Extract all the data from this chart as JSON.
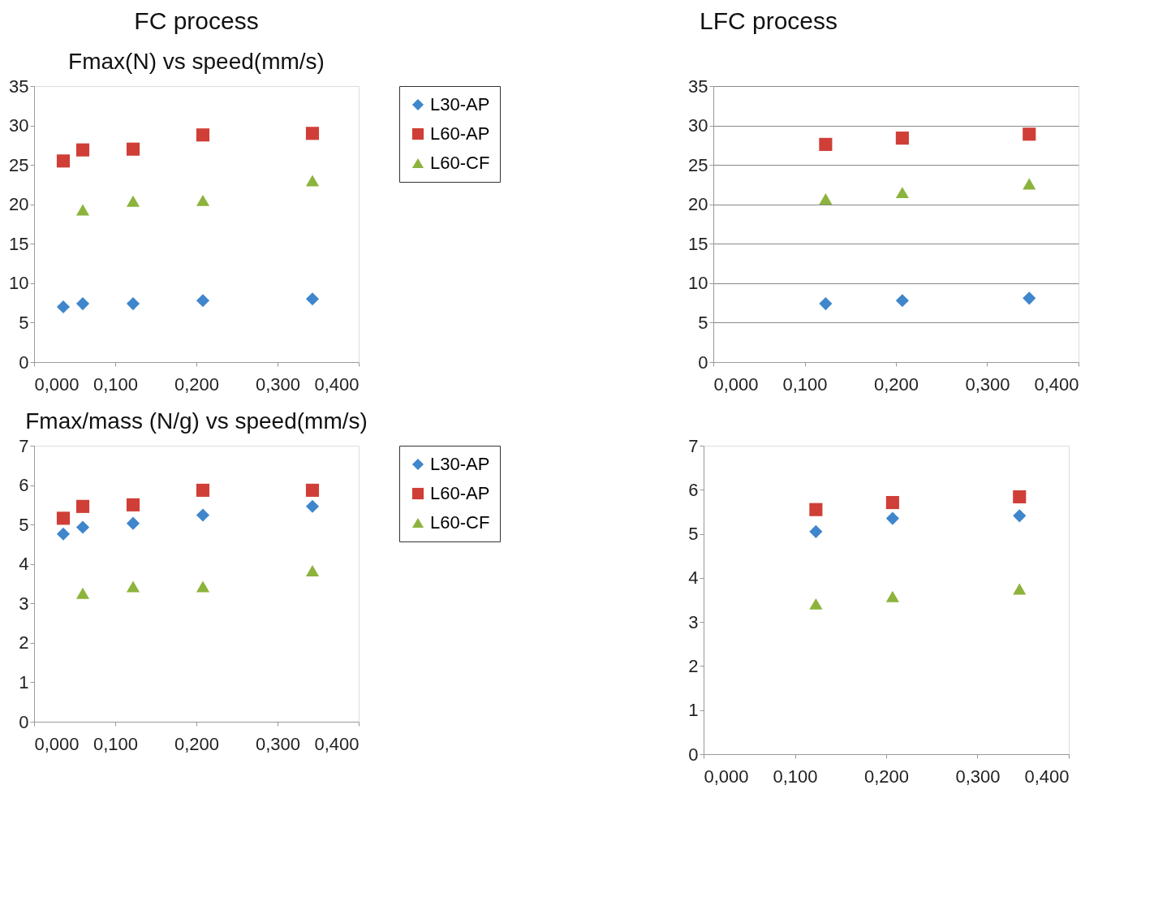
{
  "chart_data": [
    {
      "type": "scatter",
      "title": "Fmax(N) vs speed(mm/s)",
      "annotations": [
        "FC process"
      ],
      "xlim": [
        0,
        0.4
      ],
      "xticks": [
        {
          "value": 0,
          "label": "0,000"
        },
        {
          "value": 0.1,
          "label": "0,100"
        },
        {
          "value": 0.2,
          "label": "0,200"
        },
        {
          "value": 0.3,
          "label": "0,300"
        },
        {
          "value": 0.4,
          "label": "0,400"
        }
      ],
      "ylim": [
        0,
        35
      ],
      "yticks": [
        0,
        5,
        10,
        15,
        20,
        25,
        30,
        35
      ],
      "grid": false,
      "legend": "right",
      "series": [
        {
          "name": "L30-AP",
          "color": "#3f86cc",
          "marker": "diamond",
          "x": [
            0.036,
            0.06,
            0.122,
            0.208,
            0.343
          ],
          "values": [
            7.0,
            7.4,
            7.4,
            7.8,
            8.0
          ]
        },
        {
          "name": "L60-AP",
          "color": "#cf3f37",
          "marker": "square",
          "x": [
            0.036,
            0.06,
            0.122,
            0.208,
            0.343
          ],
          "values": [
            25.5,
            26.9,
            27.0,
            28.8,
            29.0
          ]
        },
        {
          "name": "L60-CF",
          "color": "#8cb33c",
          "marker": "triangle",
          "x": [
            0.06,
            0.122,
            0.208,
            0.343
          ],
          "values": [
            19.3,
            20.4,
            20.5,
            23.0
          ]
        }
      ]
    },
    {
      "type": "scatter",
      "annotations": [
        "LFC process"
      ],
      "xlim": [
        0,
        0.4
      ],
      "xticks": [
        {
          "value": 0,
          "label": "0,000"
        },
        {
          "value": 0.1,
          "label": "0,100"
        },
        {
          "value": 0.2,
          "label": "0,200"
        },
        {
          "value": 0.3,
          "label": "0,300"
        },
        {
          "value": 0.4,
          "label": "0,400"
        }
      ],
      "ylim": [
        0,
        35
      ],
      "yticks": [
        0,
        5,
        10,
        15,
        20,
        25,
        30,
        35
      ],
      "grid": "y",
      "legend": false,
      "series": [
        {
          "color": "#3f86cc",
          "marker": "diamond",
          "x": [
            0.123,
            0.207,
            0.346
          ],
          "values": [
            7.4,
            7.8,
            8.1
          ]
        },
        {
          "color": "#cf3f37",
          "marker": "square",
          "x": [
            0.123,
            0.207,
            0.346
          ],
          "values": [
            27.6,
            28.4,
            28.9
          ]
        },
        {
          "color": "#8cb33c",
          "marker": "triangle",
          "x": [
            0.123,
            0.207,
            0.346
          ],
          "values": [
            20.7,
            21.5,
            22.6
          ]
        }
      ]
    },
    {
      "type": "scatter",
      "title": "Fmax/mass (N/g) vs speed(mm/s)",
      "xlim": [
        0,
        0.4
      ],
      "xticks": [
        {
          "value": 0,
          "label": "0,000"
        },
        {
          "value": 0.1,
          "label": "0,100"
        },
        {
          "value": 0.2,
          "label": "0,200"
        },
        {
          "value": 0.3,
          "label": "0,300"
        },
        {
          "value": 0.4,
          "label": "0,400"
        }
      ],
      "ylim": [
        0,
        7
      ],
      "yticks": [
        0,
        1,
        2,
        3,
        4,
        5,
        6,
        7
      ],
      "grid": false,
      "legend": "right",
      "series": [
        {
          "name": "L30-AP",
          "color": "#3f86cc",
          "marker": "diamond",
          "x": [
            0.036,
            0.06,
            0.122,
            0.208,
            0.343
          ],
          "values": [
            4.76,
            4.93,
            5.03,
            5.24,
            5.46
          ]
        },
        {
          "name": "L60-AP",
          "color": "#cf3f37",
          "marker": "square",
          "x": [
            0.036,
            0.06,
            0.122,
            0.208,
            0.343
          ],
          "values": [
            5.16,
            5.46,
            5.5,
            5.87,
            5.87
          ]
        },
        {
          "name": "L60-CF",
          "color": "#8cb33c",
          "marker": "triangle",
          "x": [
            0.06,
            0.122,
            0.208,
            0.343
          ],
          "values": [
            3.26,
            3.43,
            3.43,
            3.83
          ]
        }
      ]
    },
    {
      "type": "scatter",
      "xlim": [
        0,
        0.4
      ],
      "xticks": [
        {
          "value": 0,
          "label": "0,000"
        },
        {
          "value": 0.1,
          "label": "0,100"
        },
        {
          "value": 0.2,
          "label": "0,200"
        },
        {
          "value": 0.3,
          "label": "0,300"
        },
        {
          "value": 0.4,
          "label": "0,400"
        }
      ],
      "ylim": [
        0,
        7
      ],
      "yticks": [
        0,
        1,
        2,
        3,
        4,
        5,
        6,
        7
      ],
      "grid": false,
      "legend": false,
      "series": [
        {
          "color": "#3f86cc",
          "marker": "diamond",
          "x": [
            0.123,
            0.207,
            0.346
          ],
          "values": [
            5.05,
            5.35,
            5.41
          ]
        },
        {
          "color": "#cf3f37",
          "marker": "square",
          "x": [
            0.123,
            0.207,
            0.346
          ],
          "values": [
            5.55,
            5.71,
            5.84
          ]
        },
        {
          "color": "#8cb33c",
          "marker": "triangle",
          "x": [
            0.123,
            0.207,
            0.346
          ],
          "values": [
            3.41,
            3.58,
            3.75
          ]
        }
      ]
    }
  ]
}
